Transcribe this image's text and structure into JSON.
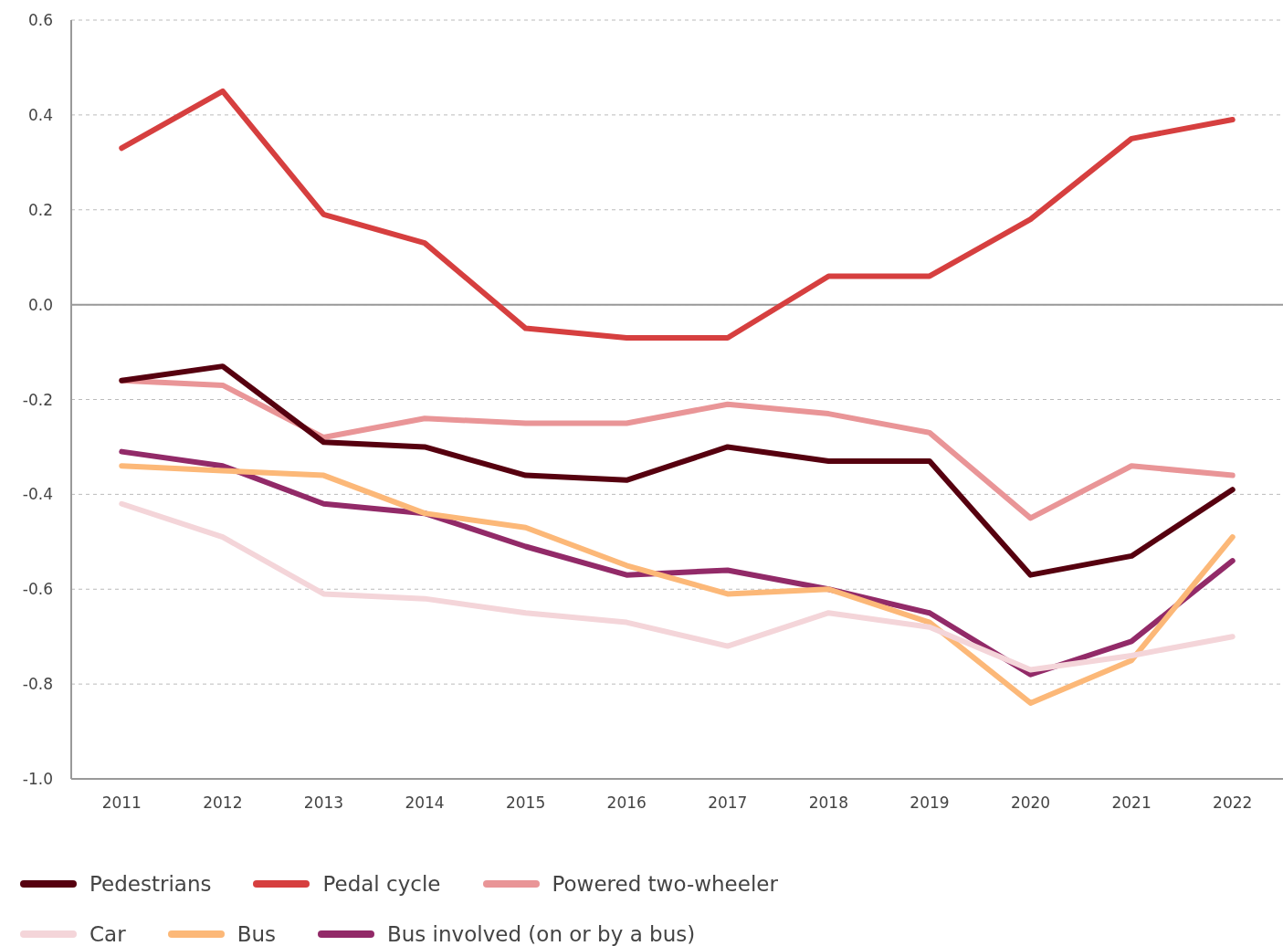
{
  "chart_data": {
    "type": "line",
    "categories": [
      "2011",
      "2012",
      "2013",
      "2014",
      "2015",
      "2016",
      "2017",
      "2018",
      "2019",
      "2020",
      "2021",
      "2022"
    ],
    "series": [
      {
        "name": "Pedestrians",
        "color": "#56000f",
        "values": [
          -0.16,
          -0.13,
          -0.29,
          -0.3,
          -0.36,
          -0.37,
          -0.3,
          -0.33,
          -0.33,
          -0.57,
          -0.53,
          -0.39
        ]
      },
      {
        "name": "Pedal cycle",
        "color": "#d63f3f",
        "values": [
          0.33,
          0.45,
          0.19,
          0.13,
          -0.05,
          -0.07,
          -0.07,
          0.06,
          0.06,
          0.18,
          0.35,
          0.39
        ]
      },
      {
        "name": "Powered two-wheeler",
        "color": "#e99597",
        "values": [
          -0.16,
          -0.17,
          -0.28,
          -0.24,
          -0.25,
          -0.25,
          -0.21,
          -0.23,
          -0.27,
          -0.45,
          -0.34,
          -0.36
        ]
      },
      {
        "name": "Car",
        "color": "#f4d5d9",
        "values": [
          -0.42,
          -0.49,
          -0.61,
          -0.62,
          -0.65,
          -0.67,
          -0.72,
          -0.65,
          -0.68,
          -0.77,
          -0.74,
          -0.7
        ]
      },
      {
        "name": "Bus",
        "color": "#fcb878",
        "values": [
          -0.34,
          -0.35,
          -0.36,
          -0.44,
          -0.47,
          -0.55,
          -0.61,
          -0.6,
          -0.67,
          -0.84,
          -0.75,
          -0.49
        ]
      },
      {
        "name": "Bus involved (on or by a bus)",
        "color": "#922a68",
        "values": [
          -0.31,
          -0.34,
          -0.42,
          -0.44,
          -0.51,
          -0.57,
          -0.56,
          -0.6,
          -0.65,
          -0.78,
          -0.71,
          -0.54
        ]
      }
    ],
    "ylim": [
      -1,
      0.6
    ],
    "yticks": [
      {
        "value": -1,
        "label": "-1.0"
      },
      -0.8,
      -0.6,
      -0.4,
      -0.2,
      {
        "value": 0,
        "label": "0.0"
      },
      0.2,
      0.4,
      0.6
    ],
    "grid": "y",
    "legend": "bottom left",
    "line_style": "solid",
    "ref_lines": [
      {
        "axis": "y",
        "value": 0,
        "color": "#999999"
      }
    ]
  }
}
